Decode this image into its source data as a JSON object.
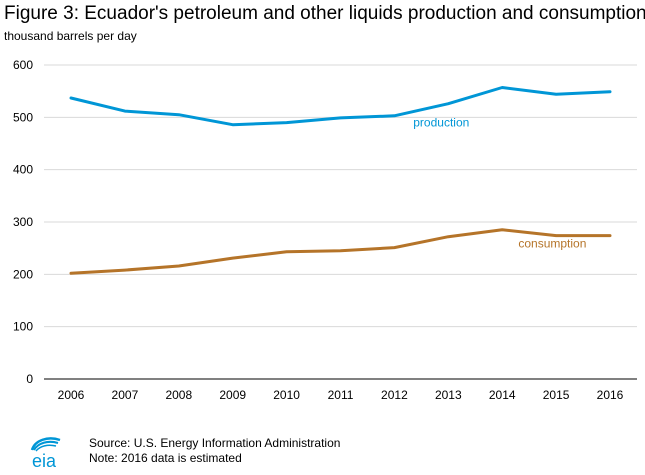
{
  "header": {
    "title": "Figure 3: Ecuador's petroleum and other liquids production and consumption",
    "subtitle": "thousand barrels per day"
  },
  "chart_data": {
    "type": "line",
    "title": "Figure 3: Ecuador's petroleum and other liquids production and consumption",
    "ylabel": "thousand barrels per day",
    "xlabel": "",
    "ylim": [
      0,
      600
    ],
    "yticks": [
      0,
      100,
      200,
      300,
      400,
      500,
      600
    ],
    "grid": true,
    "categories": [
      "2006",
      "2007",
      "2008",
      "2009",
      "2010",
      "2011",
      "2012",
      "2013",
      "2014",
      "2015",
      "2016"
    ],
    "series": [
      {
        "name": "production",
        "color": "#0096d6",
        "values": [
          537,
          512,
          505,
          486,
          490,
          499,
          503,
          526,
          557,
          544,
          549
        ]
      },
      {
        "name": "consumption",
        "color": "#b57429",
        "values": [
          202,
          208,
          216,
          231,
          243,
          245,
          251,
          272,
          285,
          274,
          274
        ]
      }
    ]
  },
  "footer": {
    "source": "Source: U.S. Energy Information Administration",
    "note": "Note: 2016 data is estimated",
    "logo_text": "eia"
  }
}
